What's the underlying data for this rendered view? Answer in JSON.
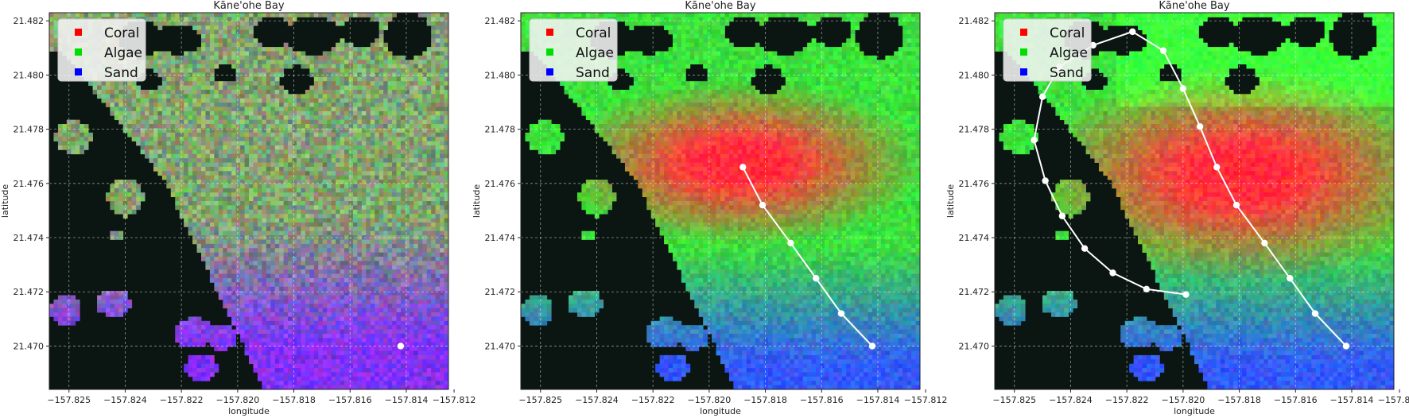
{
  "chart_data": [
    {
      "type": "heatmap",
      "title": "Kāne'ohe Bay",
      "xlabel": "longitude",
      "ylabel": "latitude",
      "xlim": [
        -157.8262,
        -157.812
      ],
      "ylim": [
        21.4684,
        21.4823
      ],
      "x_ticks": [
        "−157.825",
        "−157.824",
        "−157.822",
        "−157.820",
        "−157.818",
        "−157.816",
        "−157.814",
        "−157.812"
      ],
      "x_tick_values": [
        -157.8255,
        -157.8235,
        -157.8215,
        -157.8195,
        -157.8175,
        -157.8155,
        -157.8135,
        -157.8118
      ],
      "y_ticks": [
        "21.470",
        "21.472",
        "21.474",
        "21.476",
        "21.478",
        "21.480",
        "21.482"
      ],
      "y_tick_values": [
        21.47,
        21.472,
        21.474,
        21.476,
        21.478,
        21.48,
        21.482
      ],
      "grid": true,
      "legend": {
        "placement": "upper-left",
        "entries": [
          {
            "label": "Coral",
            "color": "#ff0000"
          },
          {
            "label": "Algae",
            "color": "#00dd00"
          },
          {
            "label": "Sand",
            "color": "#0000ff"
          }
        ]
      },
      "heat_mode": "initial",
      "path": [
        {
          "lon": -157.8137,
          "lat": 21.47
        }
      ]
    },
    {
      "type": "heatmap",
      "title": "Kāne'ohe Bay",
      "xlabel": "longitude",
      "ylabel": "latitude",
      "xlim": [
        -157.8262,
        -157.812
      ],
      "ylim": [
        21.4684,
        21.4823
      ],
      "x_ticks": [
        "−157.825",
        "−157.824",
        "−157.822",
        "−157.820",
        "−157.818",
        "−157.816",
        "−157.814",
        "−157.812"
      ],
      "x_tick_values": [
        -157.8255,
        -157.8235,
        -157.8215,
        -157.8195,
        -157.8175,
        -157.8155,
        -157.8135,
        -157.8118
      ],
      "y_ticks": [
        "21.470",
        "21.472",
        "21.474",
        "21.476",
        "21.478",
        "21.480",
        "21.482"
      ],
      "y_tick_values": [
        21.47,
        21.472,
        21.474,
        21.476,
        21.478,
        21.48,
        21.482
      ],
      "grid": true,
      "legend": {
        "placement": "upper-left",
        "entries": [
          {
            "label": "Coral",
            "color": "#ff0000"
          },
          {
            "label": "Algae",
            "color": "#00dd00"
          },
          {
            "label": "Sand",
            "color": "#0000ff"
          }
        ]
      },
      "heat_mode": "partial",
      "path": [
        {
          "lon": -157.8137,
          "lat": 21.47
        },
        {
          "lon": -157.8148,
          "lat": 21.4712
        },
        {
          "lon": -157.8157,
          "lat": 21.4725
        },
        {
          "lon": -157.8166,
          "lat": 21.4738
        },
        {
          "lon": -157.8176,
          "lat": 21.4752
        },
        {
          "lon": -157.8183,
          "lat": 21.4766
        }
      ]
    },
    {
      "type": "heatmap",
      "title": "Kāne'ohe Bay",
      "xlabel": "longitude",
      "ylabel": "latitude",
      "xlim": [
        -157.8262,
        -157.812
      ],
      "ylim": [
        21.4684,
        21.4823
      ],
      "x_ticks": [
        "−157.825",
        "−157.824",
        "−157.822",
        "−157.820",
        "−157.818",
        "−157.816",
        "−157.814",
        "−157.812"
      ],
      "x_tick_values": [
        -157.8255,
        -157.8235,
        -157.8215,
        -157.8195,
        -157.8175,
        -157.8155,
        -157.8135,
        -157.8118
      ],
      "y_ticks": [
        "21.470",
        "21.472",
        "21.474",
        "21.476",
        "21.478",
        "21.480",
        "21.482"
      ],
      "y_tick_values": [
        21.47,
        21.472,
        21.474,
        21.476,
        21.478,
        21.48,
        21.482
      ],
      "grid": true,
      "legend": {
        "placement": "upper-left",
        "entries": [
          {
            "label": "Coral",
            "color": "#ff0000"
          },
          {
            "label": "Algae",
            "color": "#00dd00"
          },
          {
            "label": "Sand",
            "color": "#0000ff"
          }
        ]
      },
      "heat_mode": "full",
      "path": [
        {
          "lon": -157.8137,
          "lat": 21.47
        },
        {
          "lon": -157.8148,
          "lat": 21.4712
        },
        {
          "lon": -157.8157,
          "lat": 21.4725
        },
        {
          "lon": -157.8166,
          "lat": 21.4738
        },
        {
          "lon": -157.8176,
          "lat": 21.4752
        },
        {
          "lon": -157.8183,
          "lat": 21.4766
        },
        {
          "lon": -157.8189,
          "lat": 21.4781
        },
        {
          "lon": -157.8195,
          "lat": 21.4795
        },
        {
          "lon": -157.8202,
          "lat": 21.4809
        },
        {
          "lon": -157.8213,
          "lat": 21.4816
        },
        {
          "lon": -157.8227,
          "lat": 21.4811
        },
        {
          "lon": -157.8239,
          "lat": 21.4803
        },
        {
          "lon": -157.8245,
          "lat": 21.4792
        },
        {
          "lon": -157.8248,
          "lat": 21.4776
        },
        {
          "lon": -157.8244,
          "lat": 21.4761
        },
        {
          "lon": -157.8238,
          "lat": 21.4748
        },
        {
          "lon": -157.823,
          "lat": 21.4736
        },
        {
          "lon": -157.822,
          "lat": 21.4727
        },
        {
          "lon": -157.8208,
          "lat": 21.4721
        },
        {
          "lon": -157.8194,
          "lat": 21.4719
        }
      ]
    }
  ]
}
